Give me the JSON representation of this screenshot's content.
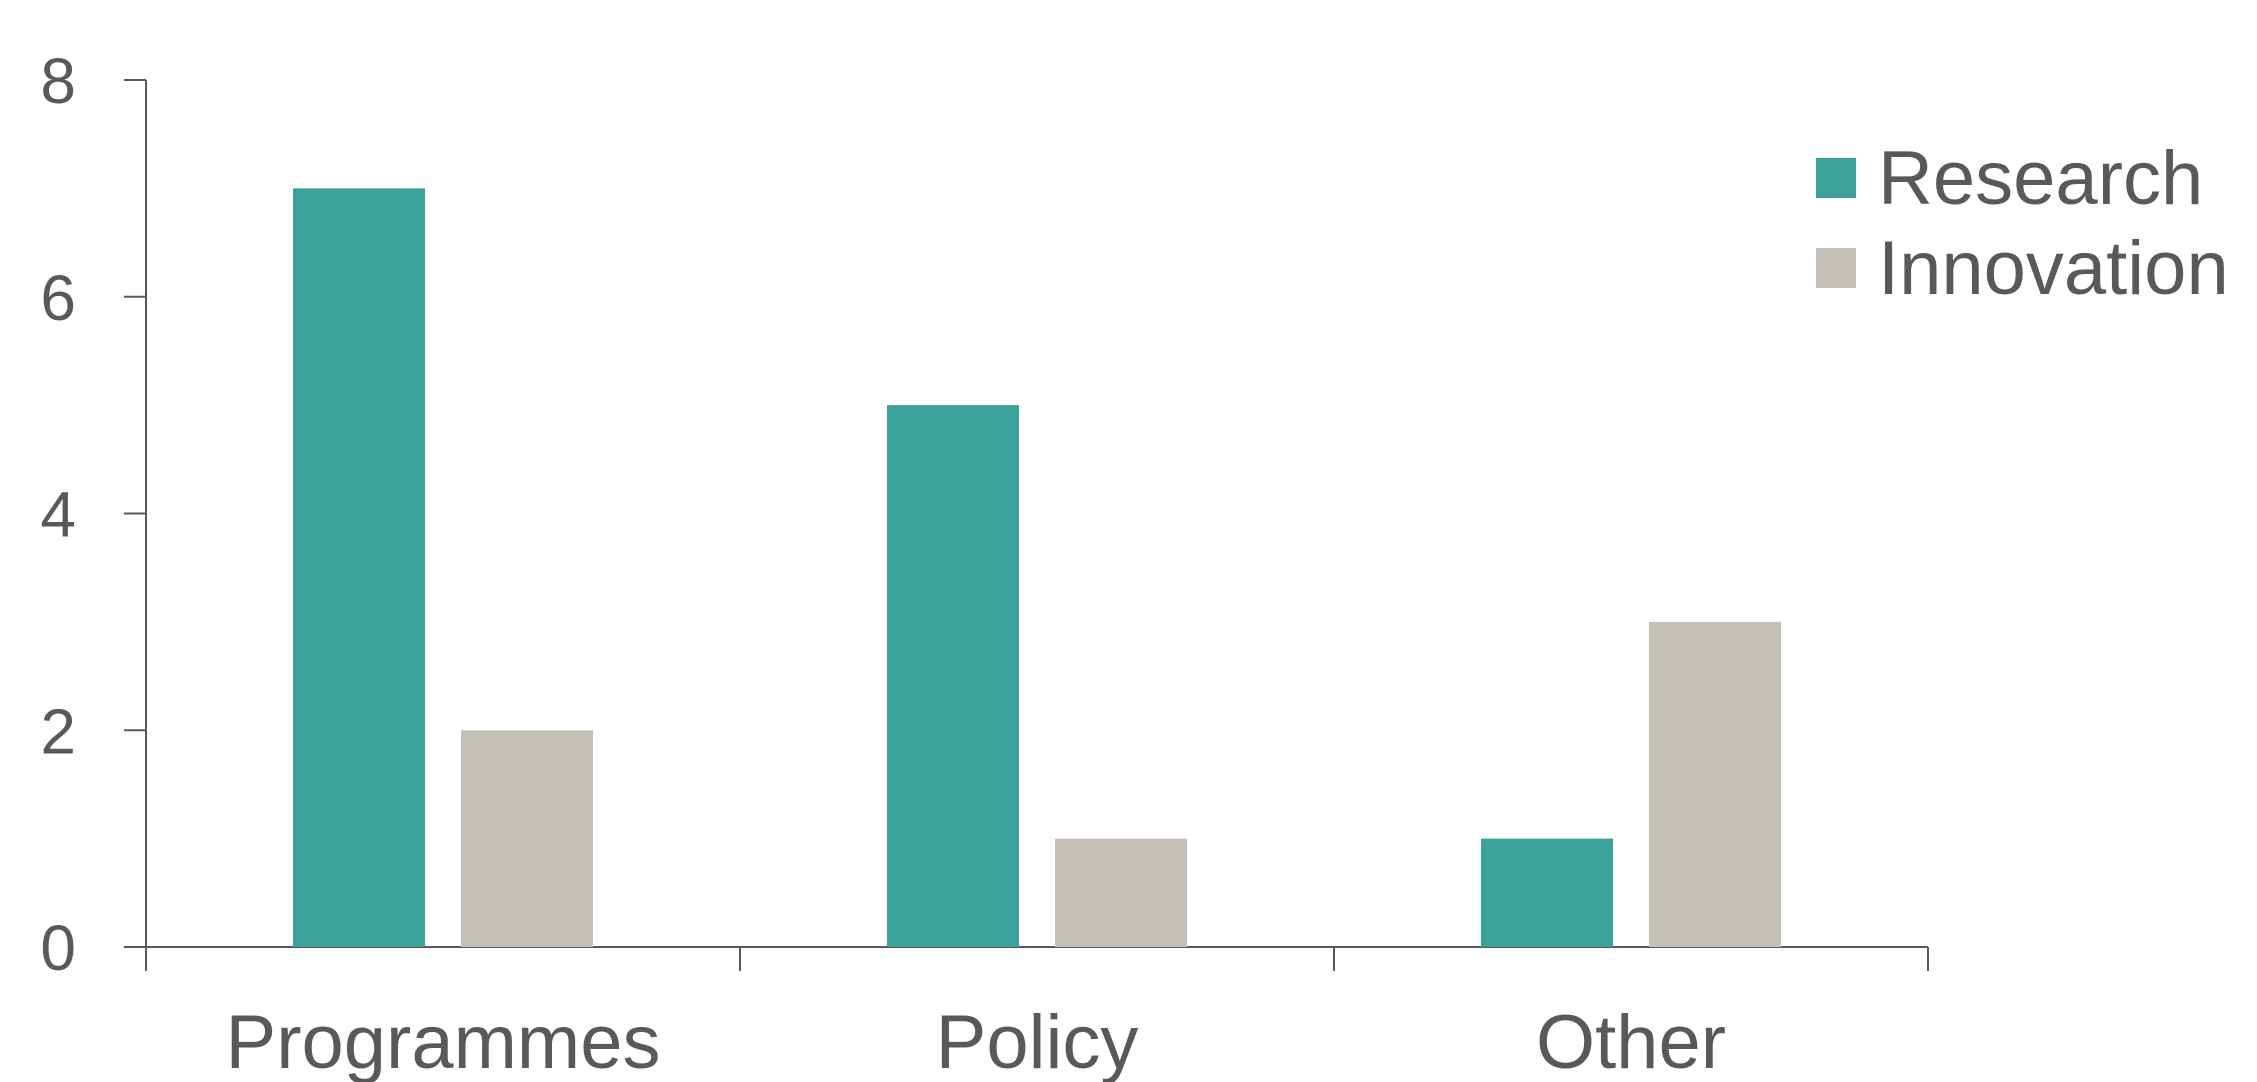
{
  "chart_data": {
    "type": "bar",
    "title": "",
    "xlabel": "",
    "ylabel": "",
    "categories": [
      "Programmes",
      "Policy",
      "Other"
    ],
    "series": [
      {
        "name": "Research",
        "values": [
          7,
          5,
          1
        ],
        "color": "#3aa29a"
      },
      {
        "name": "Innovation",
        "values": [
          2,
          1,
          3
        ],
        "color": "#c4c0b7"
      }
    ],
    "ylim": [
      0,
      8
    ],
    "yticks": [
      "0",
      "2",
      "4",
      "6",
      "8"
    ],
    "grid": false,
    "legend_position": "top-right"
  }
}
